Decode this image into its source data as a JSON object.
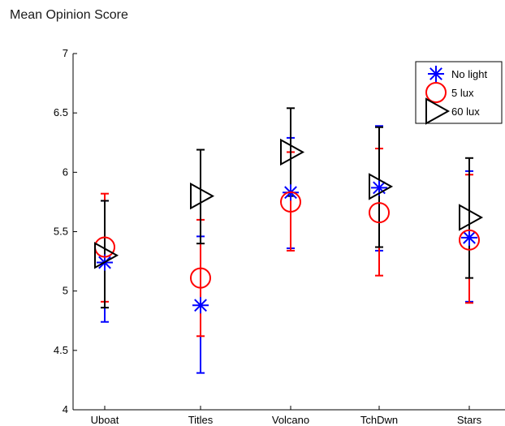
{
  "chart_data": {
    "type": "scatter",
    "title": "Mean Opinion Score",
    "xlabel": "",
    "ylabel": "",
    "categories": [
      "Uboat",
      "Titles",
      "Volcano",
      "TchDwn",
      "Stars"
    ],
    "ylim": [
      4,
      7
    ],
    "yticks": [
      "4",
      "4.5",
      "5",
      "5.5",
      "6",
      "6.5",
      "7"
    ],
    "grid": false,
    "legend_position": "top-right",
    "series": [
      {
        "name": "No light",
        "marker": "asterisk",
        "color": "#0000ff",
        "values": [
          5.24,
          4.88,
          5.83,
          5.87,
          5.45
        ],
        "error_low": [
          4.74,
          4.31,
          5.36,
          5.34,
          4.91
        ],
        "error_high": [
          5.76,
          5.46,
          6.29,
          6.39,
          6.01
        ]
      },
      {
        "name": "5 lux",
        "marker": "circle",
        "color": "#ff0000",
        "values": [
          5.37,
          5.11,
          5.75,
          5.66,
          5.43
        ],
        "error_low": [
          4.91,
          4.62,
          5.34,
          5.13,
          4.9
        ],
        "error_high": [
          5.82,
          5.6,
          6.17,
          6.2,
          5.98
        ]
      },
      {
        "name": "60 lux",
        "marker": "triangle-right",
        "color": "#000000",
        "values": [
          5.3,
          5.8,
          6.17,
          5.88,
          5.62
        ],
        "error_low": [
          4.86,
          5.4,
          5.8,
          5.37,
          5.11
        ],
        "error_high": [
          5.76,
          6.19,
          6.54,
          6.38,
          6.12
        ]
      }
    ]
  }
}
